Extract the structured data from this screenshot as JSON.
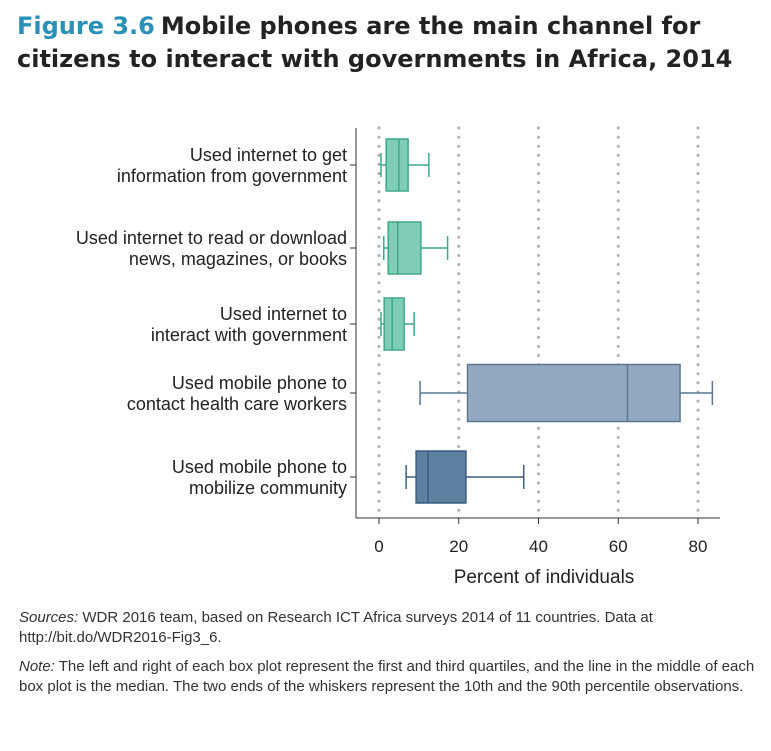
{
  "title": {
    "figure_label": "Figure 3.6",
    "line1": "Mobile phones are the main channel for",
    "line2": "citizens to interact with governments in Africa, 2014"
  },
  "colors": {
    "green_fill": "#7fcdb7",
    "green_stroke": "#3ea888",
    "lightblue_fill": "#93a9c0",
    "lightblue_stroke": "#5a7690",
    "darkblue_fill": "#5d7fa0",
    "darkblue_stroke": "#3d5f80",
    "grid": "#b0b0b0",
    "axis": "#333333",
    "title_accent": "#2b90b5"
  },
  "chart_data": {
    "type": "box",
    "xlabel": "Percent of individuals",
    "xlim": [
      -3,
      85
    ],
    "xticks": [
      0,
      20,
      40,
      60,
      80
    ],
    "grid": "vertical dotted",
    "boxes": [
      {
        "label": [
          "Used internet to get",
          "information from government"
        ],
        "p10": 0.5,
        "q1": 1.8,
        "median": 5.0,
        "q3": 7.3,
        "p90": 12.5,
        "color": "green"
      },
      {
        "label": [
          "Used internet to read or download",
          "news, magazines, or books"
        ],
        "p10": 1.2,
        "q1": 2.3,
        "median": 4.7,
        "q3": 10.5,
        "p90": 17.2,
        "color": "green"
      },
      {
        "label": [
          "Used internet to",
          "interact with government"
        ],
        "p10": 0.5,
        "q1": 1.3,
        "median": 3.3,
        "q3": 6.3,
        "p90": 8.8,
        "color": "green"
      },
      {
        "label": [
          "Used mobile phone to",
          "contact health care workers"
        ],
        "p10": 10.3,
        "q1": 22.2,
        "median": 62.3,
        "q3": 75.5,
        "p90": 83.6,
        "color": "lightblue"
      },
      {
        "label": [
          "Used mobile phone to",
          "mobilize community"
        ],
        "p10": 6.8,
        "q1": 9.3,
        "median": 12.3,
        "q3": 21.8,
        "p90": 36.3,
        "color": "darkblue"
      }
    ]
  },
  "notes": {
    "sources_label": "Sources:",
    "sources_text": " WDR 2016 team, based on Research ICT Africa surveys 2014 of 11 countries. Data at http://bit.do/WDR2016-Fig3_6.",
    "note_label": "Note:",
    "note_text": " The left and right of each box plot represent the first and third quartiles, and the line in the middle of each box plot is the median. The two ends of the whiskers represent the 10th and the 90th percentile observations."
  }
}
